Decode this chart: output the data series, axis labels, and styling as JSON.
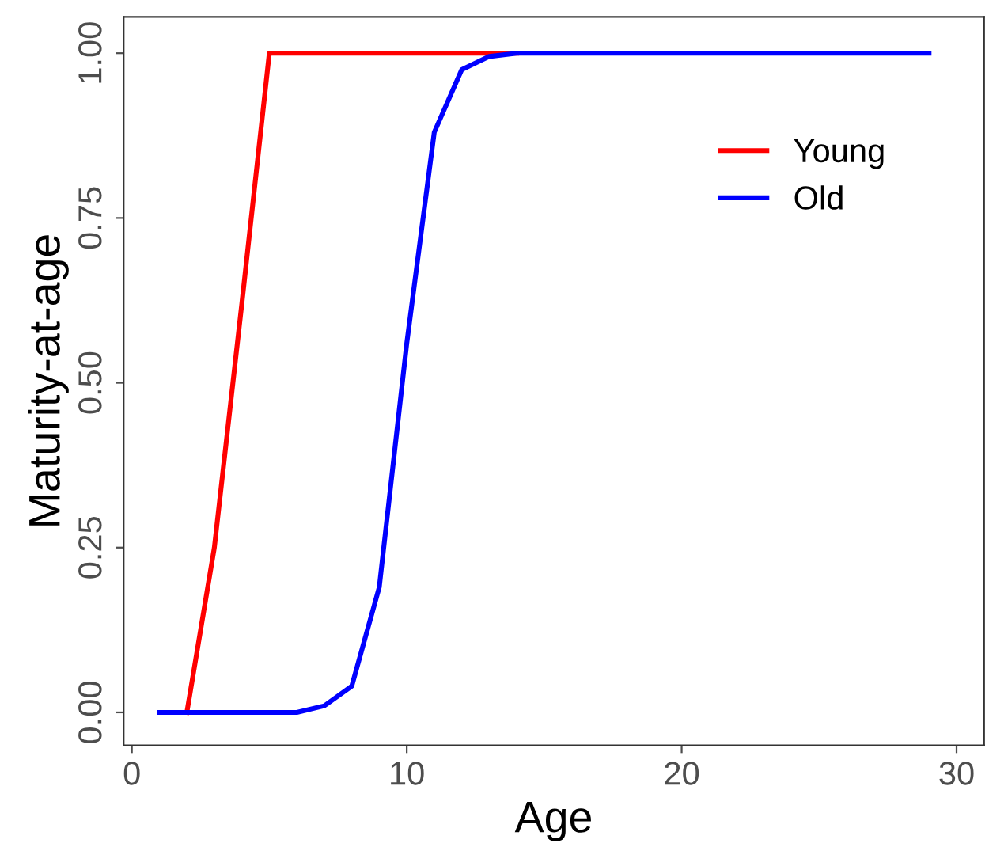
{
  "chart_data": {
    "type": "line",
    "xlabel": "Age",
    "ylabel": "Maturity-at-age",
    "x": [
      1,
      2,
      3,
      4,
      5,
      6,
      7,
      8,
      9,
      10,
      11,
      12,
      13,
      14,
      15,
      16,
      17,
      18,
      19,
      20,
      21,
      22,
      23,
      24,
      25,
      26,
      27,
      28,
      29
    ],
    "series": [
      {
        "name": "Young",
        "color": "#ff0000",
        "values": [
          null,
          0,
          0.25,
          0.62,
          1,
          1,
          1,
          1,
          1,
          1,
          1,
          1,
          1,
          1,
          null,
          null,
          null,
          null,
          null,
          null,
          null,
          null,
          null,
          null,
          null,
          null,
          null,
          null,
          null
        ]
      },
      {
        "name": "Old",
        "color": "#0000ff",
        "values": [
          0,
          0,
          0,
          0,
          0,
          0,
          0.01,
          0.04,
          0.19,
          0.56,
          0.88,
          0.975,
          0.995,
          1,
          1,
          1,
          1,
          1,
          1,
          1,
          1,
          1,
          1,
          1,
          1,
          1,
          1,
          1,
          1
        ]
      }
    ],
    "xlim": [
      -0.3,
      31
    ],
    "ylim": [
      -0.05,
      1.055
    ],
    "xticks": [
      0,
      10,
      20,
      30
    ],
    "yticks": [
      {
        "value": 0,
        "label": "0.00"
      },
      {
        "value": 0.25,
        "label": "0.25"
      },
      {
        "value": 0.5,
        "label": "0.50"
      },
      {
        "value": 0.75,
        "label": "0.75"
      },
      {
        "value": 1,
        "label": "1.00"
      }
    ],
    "grid": false,
    "legend": "right",
    "marker": "none",
    "line_style": "solid"
  }
}
